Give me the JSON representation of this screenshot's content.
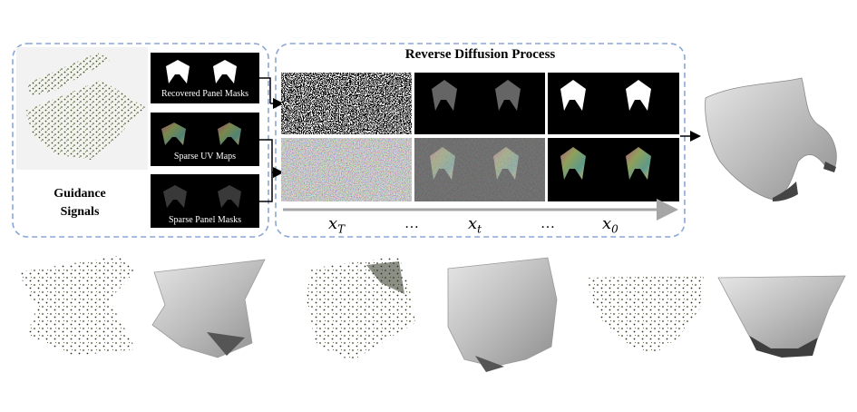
{
  "guidance": {
    "title_line1": "Guidance",
    "title_line2": "Signals",
    "panels": [
      {
        "label": "Recovered Panel Masks"
      },
      {
        "label": "Sparse UV Maps"
      },
      {
        "label": "Sparse Panel Masks"
      }
    ]
  },
  "diffusion": {
    "title": "Reverse Diffusion Process",
    "steps": [
      {
        "symbol": "x",
        "subscript": "T"
      },
      {
        "symbol": "…",
        "subscript": ""
      },
      {
        "symbol": "x",
        "subscript": "t"
      },
      {
        "symbol": "…",
        "subscript": ""
      },
      {
        "symbol": "x",
        "subscript": "0"
      }
    ]
  },
  "colors": {
    "dashed_border": "#8aa6d6",
    "arrow": "#000000",
    "timeline": "#a6a6a6",
    "mesh": "#c9c9c9",
    "points": "#3c4a2a"
  }
}
